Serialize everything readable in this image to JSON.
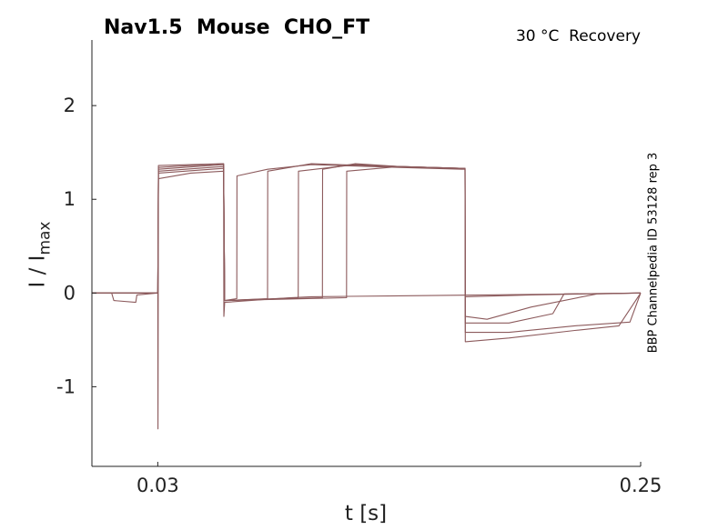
{
  "chart_data": {
    "type": "line",
    "title": "Nav1.5  Mouse  CHO_FT",
    "subtitle": "30 °C  Recovery",
    "side_label": "BBP Channelpedia ID 53128 rep 3",
    "xlabel": "t [s]",
    "ylabel_main": "I / I",
    "ylabel_sub": "max",
    "xlim": [
      0.0,
      0.25
    ],
    "ylim": [
      -1.85,
      2.7
    ],
    "xticks": [
      {
        "value": 0.03,
        "label": "0.03"
      },
      {
        "value": 0.25,
        "label": "0.25"
      }
    ],
    "yticks": [
      {
        "value": 2,
        "label": "2"
      },
      {
        "value": 1,
        "label": "1"
      },
      {
        "value": 0,
        "label": "0"
      },
      {
        "value": -1,
        "label": "-1"
      }
    ],
    "grid": false,
    "line_color": "#8c5a5c",
    "series": [
      {
        "values": [
          [
            0.0,
            0.0
          ],
          [
            0.009,
            0.0
          ],
          [
            0.01,
            -0.08
          ],
          [
            0.02,
            -0.1
          ],
          [
            0.0205,
            -0.02
          ],
          [
            0.03,
            0.0
          ],
          [
            0.0301,
            -1.45
          ],
          [
            0.0303,
            1.22
          ],
          [
            0.045,
            1.28
          ],
          [
            0.06,
            1.3
          ],
          [
            0.0601,
            -0.25
          ],
          [
            0.0605,
            -0.1
          ],
          [
            0.09,
            -0.05
          ],
          [
            0.1,
            -0.04
          ],
          [
            0.14,
            -0.03
          ],
          [
            0.18,
            -0.02
          ],
          [
            0.22,
            -0.01
          ],
          [
            0.25,
            0.0
          ]
        ]
      },
      {
        "values": [
          [
            0.0,
            0.0
          ],
          [
            0.03,
            0.0
          ],
          [
            0.0303,
            1.28
          ],
          [
            0.06,
            1.33
          ],
          [
            0.0605,
            -0.08
          ],
          [
            0.066,
            -0.06
          ],
          [
            0.0661,
            1.25
          ],
          [
            0.08,
            1.32
          ],
          [
            0.1,
            1.37
          ],
          [
            0.14,
            1.34
          ],
          [
            0.17,
            1.32
          ],
          [
            0.1701,
            -0.04
          ],
          [
            0.2,
            -0.02
          ],
          [
            0.25,
            0.0
          ]
        ]
      },
      {
        "values": [
          [
            0.0,
            0.0
          ],
          [
            0.03,
            0.0
          ],
          [
            0.0303,
            1.3
          ],
          [
            0.06,
            1.35
          ],
          [
            0.0605,
            -0.08
          ],
          [
            0.08,
            -0.06
          ],
          [
            0.0801,
            1.3
          ],
          [
            0.1,
            1.38
          ],
          [
            0.14,
            1.35
          ],
          [
            0.17,
            1.33
          ],
          [
            0.1701,
            -0.25
          ],
          [
            0.18,
            -0.28
          ],
          [
            0.2,
            -0.15
          ],
          [
            0.2301,
            -0.01
          ],
          [
            0.25,
            0.0
          ]
        ]
      },
      {
        "values": [
          [
            0.0,
            0.0
          ],
          [
            0.03,
            0.0
          ],
          [
            0.0303,
            1.32
          ],
          [
            0.06,
            1.37
          ],
          [
            0.0605,
            -0.08
          ],
          [
            0.094,
            -0.05
          ],
          [
            0.0941,
            1.3
          ],
          [
            0.12,
            1.37
          ],
          [
            0.14,
            1.35
          ],
          [
            0.17,
            1.33
          ],
          [
            0.1701,
            -0.32
          ],
          [
            0.19,
            -0.32
          ],
          [
            0.21,
            -0.22
          ],
          [
            0.2151,
            -0.01
          ],
          [
            0.25,
            0.0
          ]
        ]
      },
      {
        "values": [
          [
            0.0,
            0.0
          ],
          [
            0.03,
            0.0
          ],
          [
            0.0303,
            1.34
          ],
          [
            0.06,
            1.38
          ],
          [
            0.0605,
            -0.08
          ],
          [
            0.105,
            -0.05
          ],
          [
            0.1051,
            1.32
          ],
          [
            0.12,
            1.38
          ],
          [
            0.14,
            1.35
          ],
          [
            0.17,
            1.33
          ],
          [
            0.1701,
            -0.42
          ],
          [
            0.19,
            -0.42
          ],
          [
            0.22,
            -0.35
          ],
          [
            0.2451,
            -0.31
          ],
          [
            0.25,
            0.0
          ]
        ]
      },
      {
        "values": [
          [
            0.0,
            0.0
          ],
          [
            0.03,
            0.0
          ],
          [
            0.0303,
            1.36
          ],
          [
            0.06,
            1.38
          ],
          [
            0.0605,
            -0.08
          ],
          [
            0.116,
            -0.05
          ],
          [
            0.1161,
            1.3
          ],
          [
            0.14,
            1.35
          ],
          [
            0.17,
            1.33
          ],
          [
            0.1701,
            -0.52
          ],
          [
            0.19,
            -0.48
          ],
          [
            0.22,
            -0.4
          ],
          [
            0.2401,
            -0.35
          ],
          [
            0.25,
            0.0
          ]
        ]
      }
    ]
  }
}
